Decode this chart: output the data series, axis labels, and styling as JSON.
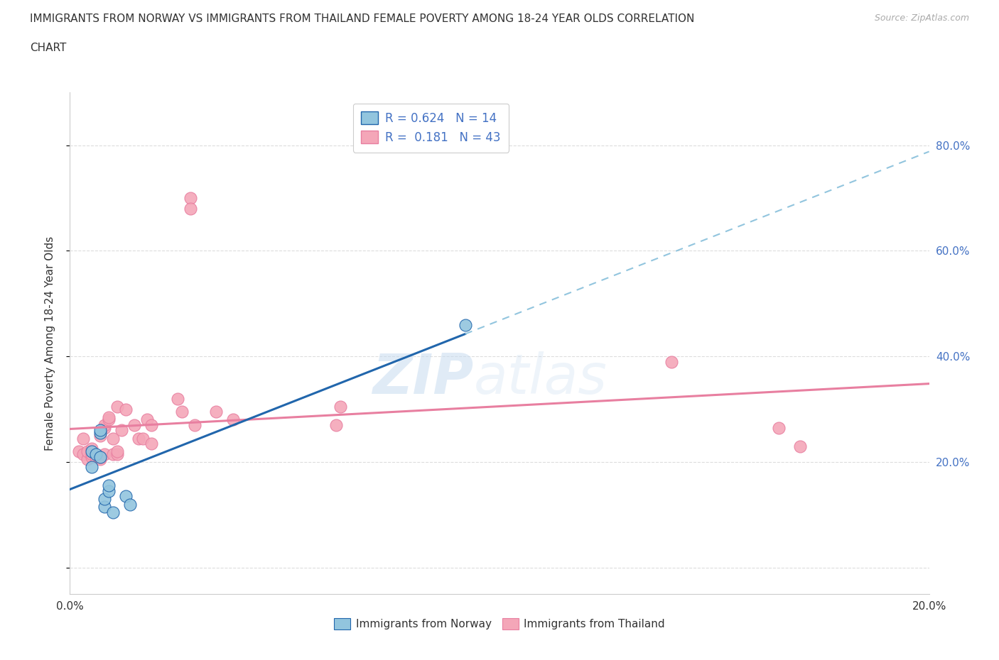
{
  "title_line1": "IMMIGRANTS FROM NORWAY VS IMMIGRANTS FROM THAILAND FEMALE POVERTY AMONG 18-24 YEAR OLDS CORRELATION",
  "title_line2": "CHART",
  "source": "Source: ZipAtlas.com",
  "ylabel": "Female Poverty Among 18-24 Year Olds",
  "xlim": [
    0.0,
    0.2
  ],
  "ylim": [
    -0.05,
    0.9
  ],
  "plot_ylim": [
    -0.05,
    0.9
  ],
  "yticks": [
    0.0,
    0.2,
    0.4,
    0.6,
    0.8
  ],
  "ytick_labels": [
    "",
    "20.0%",
    "40.0%",
    "60.0%",
    "80.0%"
  ],
  "xticks": [
    0.0,
    0.05,
    0.1,
    0.15,
    0.2
  ],
  "xtick_labels": [
    "0.0%",
    "",
    "",
    "",
    "20.0%"
  ],
  "norway_R": 0.624,
  "norway_N": 14,
  "thailand_R": 0.181,
  "thailand_N": 43,
  "norway_color": "#92c5de",
  "thailand_color": "#f4a6b8",
  "norway_line_color": "#2166ac",
  "thailand_line_color": "#e87fa0",
  "norway_dashed_color": "#92c5de",
  "norway_x": [
    0.005,
    0.005,
    0.006,
    0.007,
    0.007,
    0.007,
    0.008,
    0.008,
    0.009,
    0.009,
    0.01,
    0.013,
    0.014,
    0.092
  ],
  "norway_y": [
    0.19,
    0.22,
    0.215,
    0.21,
    0.255,
    0.26,
    0.115,
    0.13,
    0.145,
    0.155,
    0.105,
    0.135,
    0.12,
    0.46
  ],
  "thailand_x": [
    0.002,
    0.003,
    0.003,
    0.004,
    0.004,
    0.005,
    0.005,
    0.005,
    0.006,
    0.006,
    0.007,
    0.007,
    0.007,
    0.008,
    0.008,
    0.008,
    0.009,
    0.009,
    0.01,
    0.01,
    0.011,
    0.011,
    0.011,
    0.012,
    0.013,
    0.015,
    0.016,
    0.017,
    0.018,
    0.019,
    0.019,
    0.025,
    0.026,
    0.028,
    0.028,
    0.029,
    0.034,
    0.038,
    0.062,
    0.063,
    0.14,
    0.165,
    0.17
  ],
  "thailand_y": [
    0.22,
    0.215,
    0.245,
    0.205,
    0.22,
    0.21,
    0.215,
    0.225,
    0.21,
    0.21,
    0.205,
    0.21,
    0.25,
    0.265,
    0.27,
    0.215,
    0.28,
    0.285,
    0.215,
    0.245,
    0.215,
    0.22,
    0.305,
    0.26,
    0.3,
    0.27,
    0.245,
    0.245,
    0.28,
    0.235,
    0.27,
    0.32,
    0.295,
    0.7,
    0.68,
    0.27,
    0.295,
    0.28,
    0.27,
    0.305,
    0.39,
    0.265,
    0.23
  ],
  "background_color": "#ffffff",
  "grid_color": "#dddddd",
  "legend_label_color": "#4472c4"
}
